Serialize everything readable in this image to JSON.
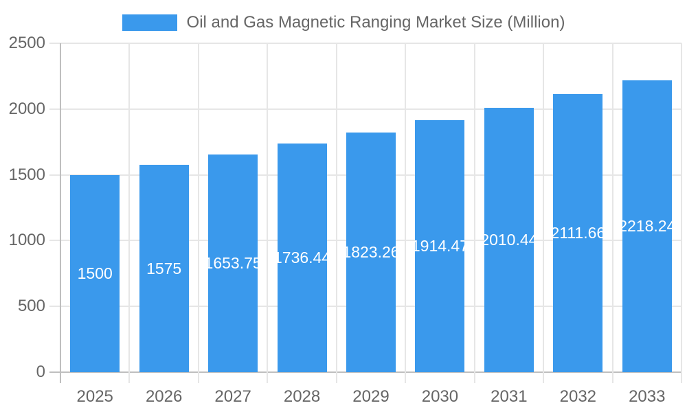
{
  "legend": {
    "label": "Oil and Gas Magnetic Ranging Market Size (Million)"
  },
  "chart_data": {
    "type": "bar",
    "title": "Oil and Gas Magnetic Ranging Market Size (Million)",
    "categories": [
      "2025",
      "2026",
      "2027",
      "2028",
      "2029",
      "2030",
      "2031",
      "2032",
      "2033"
    ],
    "values": [
      1500,
      1575,
      1653.75,
      1736.44,
      1823.26,
      1914.47,
      2010.44,
      2111.66,
      2218.24
    ],
    "value_labels": [
      "1500",
      "1575",
      "1653.75",
      "1736.44",
      "1823.26",
      "1914.47",
      "2010.44",
      "2111.66",
      "2218.24"
    ],
    "xlabel": "",
    "ylabel": "",
    "ylim": [
      0,
      2500
    ],
    "yticks": [
      0,
      500,
      1000,
      1500,
      2000,
      2500
    ],
    "ytick_labels": [
      "0",
      "500",
      "1000",
      "1500",
      "2000",
      "2500"
    ],
    "grid": true,
    "legend_position": "top",
    "colors": {
      "bar": "#3A99EC",
      "grid": "#e6e6e6",
      "axis": "#bfbfbf",
      "tick_text": "#666666",
      "bar_label": "#ffffff",
      "background": "#ffffff"
    }
  }
}
